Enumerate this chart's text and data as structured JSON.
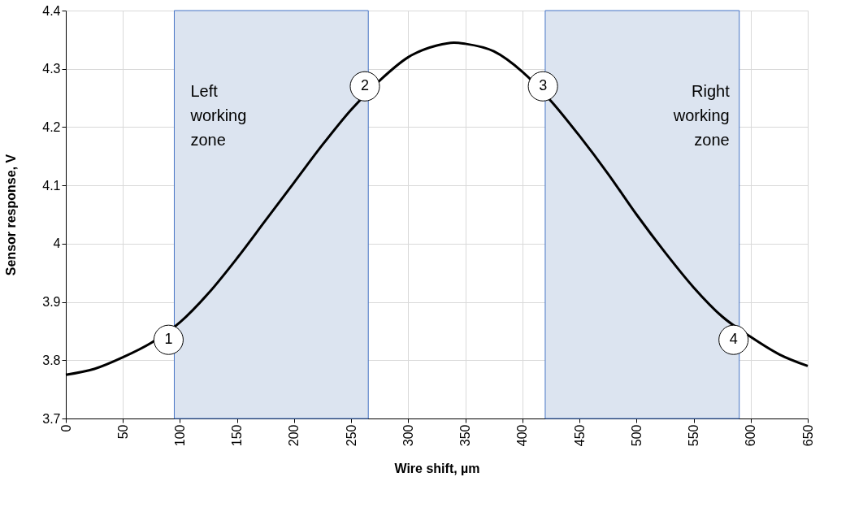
{
  "chart_data": {
    "type": "line",
    "xlabel": "Wire shift, µm",
    "ylabel": "Sensor response, V",
    "x": [
      0,
      25,
      50,
      75,
      100,
      125,
      150,
      175,
      200,
      225,
      250,
      275,
      300,
      325,
      340,
      350,
      375,
      400,
      425,
      450,
      475,
      500,
      525,
      550,
      575,
      600,
      625,
      650
    ],
    "series": [
      {
        "color": "#000000",
        "values": [
          3.775,
          3.785,
          3.805,
          3.83,
          3.865,
          3.915,
          3.975,
          4.04,
          4.105,
          4.17,
          4.23,
          4.28,
          4.32,
          4.34,
          4.345,
          4.343,
          4.33,
          4.295,
          4.245,
          4.185,
          4.12,
          4.05,
          3.985,
          3.925,
          3.875,
          3.84,
          3.81,
          3.79
        ]
      }
    ],
    "xlim": [
      0,
      650
    ],
    "xticks": [
      0,
      50,
      100,
      150,
      200,
      250,
      300,
      350,
      400,
      450,
      500,
      550,
      600,
      650
    ],
    "ylim": [
      3.7,
      4.4
    ],
    "yticks": [
      3.7,
      3.8,
      3.9,
      4,
      4.1,
      4.2,
      4.3,
      4.4
    ],
    "grid": true,
    "marker": "none",
    "line_style": "solid",
    "bands": [
      {
        "axis": "x",
        "from": 95,
        "to": 265,
        "label": "Left working zone",
        "color": "#dce4f0"
      },
      {
        "axis": "x",
        "from": 420,
        "to": 590,
        "label": "Right working zone",
        "color": "#dce4f0"
      }
    ],
    "annotations": [
      {
        "text": "1",
        "x": 90,
        "y": 3.835
      },
      {
        "text": "2",
        "x": 262,
        "y": 4.27
      },
      {
        "text": "3",
        "x": 418,
        "y": 4.27
      },
      {
        "text": "4",
        "x": 585,
        "y": 3.835
      }
    ]
  }
}
